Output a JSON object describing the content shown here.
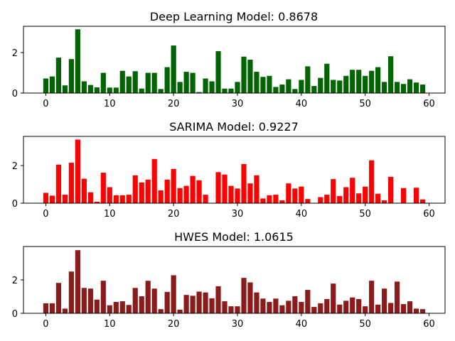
{
  "chart_data": [
    {
      "type": "bar",
      "title": "Deep Learning Model: 0.8678",
      "xlabel": "",
      "ylabel": "",
      "color": "#006400",
      "xlim": [
        -3.5,
        62.5
      ],
      "ylim": [
        0,
        3.3
      ],
      "xticks": [
        0,
        10,
        20,
        30,
        40,
        50,
        60
      ],
      "yticks": [
        0,
        2
      ],
      "x": [
        0,
        1,
        2,
        3,
        4,
        5,
        6,
        7,
        8,
        9,
        10,
        11,
        12,
        13,
        14,
        15,
        16,
        17,
        18,
        19,
        20,
        21,
        22,
        23,
        24,
        25,
        26,
        27,
        28,
        29,
        30,
        31,
        32,
        33,
        34,
        35,
        36,
        37,
        38,
        39,
        40,
        41,
        42,
        43,
        44,
        45,
        46,
        47,
        48,
        49,
        50,
        51,
        52,
        53,
        54,
        55,
        56,
        57,
        58,
        59
      ],
      "values": [
        0.72,
        0.82,
        1.75,
        0.38,
        1.68,
        3.15,
        0.58,
        0.4,
        0.28,
        1.0,
        0.27,
        0.27,
        1.1,
        0.82,
        1.08,
        0.22,
        1.0,
        1.0,
        0.2,
        1.28,
        2.35,
        0.55,
        1.05,
        1.0,
        0.05,
        0.72,
        0.58,
        2.07,
        0.22,
        0.22,
        0.55,
        1.8,
        1.65,
        1.05,
        0.8,
        0.85,
        0.3,
        0.42,
        0.68,
        0.2,
        0.65,
        1.32,
        0.35,
        0.75,
        1.45,
        0.65,
        0.62,
        0.85,
        1.15,
        1.15,
        0.85,
        1.1,
        1.28,
        0.55,
        1.82,
        0.55,
        0.45,
        0.68,
        0.52,
        0.42
      ]
    },
    {
      "type": "bar",
      "title": "SARIMA Model: 0.9227",
      "xlabel": "",
      "ylabel": "",
      "color": "#ff0000",
      "xlim": [
        -3.5,
        62.5
      ],
      "ylim": [
        0,
        3.55
      ],
      "xticks": [
        0,
        10,
        20,
        30,
        40,
        50,
        60
      ],
      "yticks": [
        0,
        2
      ],
      "x": [
        0,
        1,
        2,
        3,
        4,
        5,
        6,
        7,
        8,
        9,
        10,
        11,
        12,
        13,
        14,
        15,
        16,
        17,
        18,
        19,
        20,
        21,
        22,
        23,
        24,
        25,
        26,
        27,
        28,
        29,
        30,
        31,
        32,
        33,
        34,
        35,
        36,
        37,
        38,
        39,
        40,
        41,
        42,
        43,
        44,
        45,
        46,
        47,
        48,
        49,
        50,
        51,
        52,
        53,
        54,
        55,
        56,
        57,
        58,
        59
      ],
      "values": [
        0.55,
        0.4,
        2.05,
        0.45,
        2.15,
        3.38,
        1.3,
        0.58,
        0.08,
        1.62,
        0.85,
        0.42,
        0.42,
        0.45,
        1.48,
        1.1,
        1.25,
        2.35,
        0.68,
        1.25,
        1.82,
        0.8,
        0.92,
        1.45,
        1.22,
        0.45,
        0.0,
        1.65,
        1.52,
        0.92,
        0.78,
        2.08,
        1.05,
        1.48,
        0.25,
        0.42,
        0.45,
        0.15,
        1.05,
        0.78,
        0.88,
        0.22,
        0.0,
        0.32,
        0.45,
        1.28,
        0.38,
        0.85,
        1.35,
        0.52,
        0.88,
        2.28,
        0.5,
        0.15,
        1.4,
        0.0,
        0.8,
        0.0,
        0.82,
        0.2
      ]
    },
    {
      "type": "bar",
      "title": "HWES Model: 1.0615",
      "xlabel": "",
      "ylabel": "",
      "color": "#8b1a1a",
      "xlim": [
        -3.5,
        62.5
      ],
      "ylim": [
        0,
        4.0
      ],
      "xticks": [
        0,
        10,
        20,
        30,
        40,
        50,
        60
      ],
      "yticks": [
        0,
        2
      ],
      "x": [
        0,
        1,
        2,
        3,
        4,
        5,
        6,
        7,
        8,
        9,
        10,
        11,
        12,
        13,
        14,
        15,
        16,
        17,
        18,
        19,
        20,
        21,
        22,
        23,
        24,
        25,
        26,
        27,
        28,
        29,
        30,
        31,
        32,
        33,
        34,
        35,
        36,
        37,
        38,
        39,
        40,
        41,
        42,
        43,
        44,
        45,
        46,
        47,
        48,
        49,
        50,
        51,
        52,
        53,
        54,
        55,
        56,
        57,
        58,
        59
      ],
      "values": [
        0.6,
        0.6,
        1.82,
        0.28,
        2.5,
        3.78,
        1.52,
        1.48,
        0.82,
        1.95,
        0.48,
        0.68,
        0.72,
        0.5,
        1.52,
        1.02,
        1.95,
        1.48,
        0.25,
        1.28,
        2.28,
        0.22,
        1.1,
        1.05,
        1.3,
        1.25,
        0.9,
        1.62,
        0.72,
        0.42,
        0.42,
        2.12,
        1.85,
        1.25,
        0.88,
        0.68,
        0.88,
        0.48,
        0.75,
        1.02,
        0.68,
        1.4,
        0.38,
        0.6,
        0.85,
        1.78,
        0.52,
        0.75,
        0.95,
        0.85,
        0.42,
        1.95,
        0.52,
        1.48,
        0.62,
        1.9,
        0.55,
        0.72,
        0.28,
        0.25
      ]
    }
  ]
}
